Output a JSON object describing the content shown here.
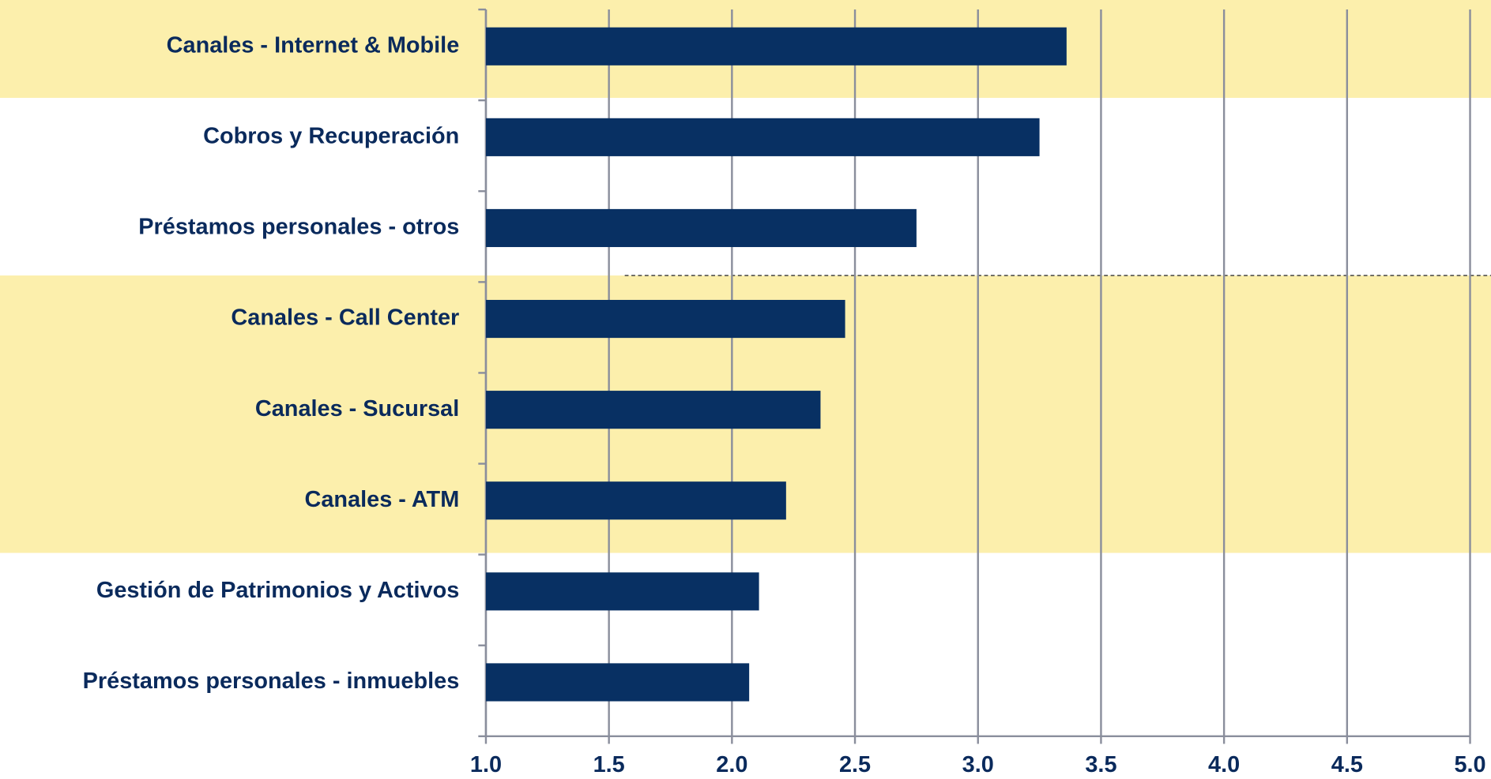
{
  "chart_data": {
    "type": "bar",
    "orientation": "horizontal",
    "categories": [
      "Canales - Internet & Mobile",
      "Cobros y Recuperación",
      "Préstamos personales - otros",
      "Canales - Call Center",
      "Canales - Sucursal",
      "Canales - ATM",
      "Gestión de Patrimonios y Activos",
      "Préstamos personales - inmuebles"
    ],
    "values": [
      3.36,
      3.25,
      2.75,
      2.46,
      2.36,
      2.22,
      2.11,
      2.07
    ],
    "color": "#083063",
    "xlim": [
      1,
      5
    ],
    "xticks": [
      {
        "value": 1,
        "label": "1.0"
      },
      1.5,
      {
        "value": 2,
        "label": "2.0"
      },
      2.5,
      {
        "value": 3,
        "label": "3.0"
      },
      3.5,
      {
        "value": 4,
        "label": "4.0"
      },
      4.5,
      {
        "value": 5,
        "label": "5.0"
      }
    ],
    "grid": true
  }
}
